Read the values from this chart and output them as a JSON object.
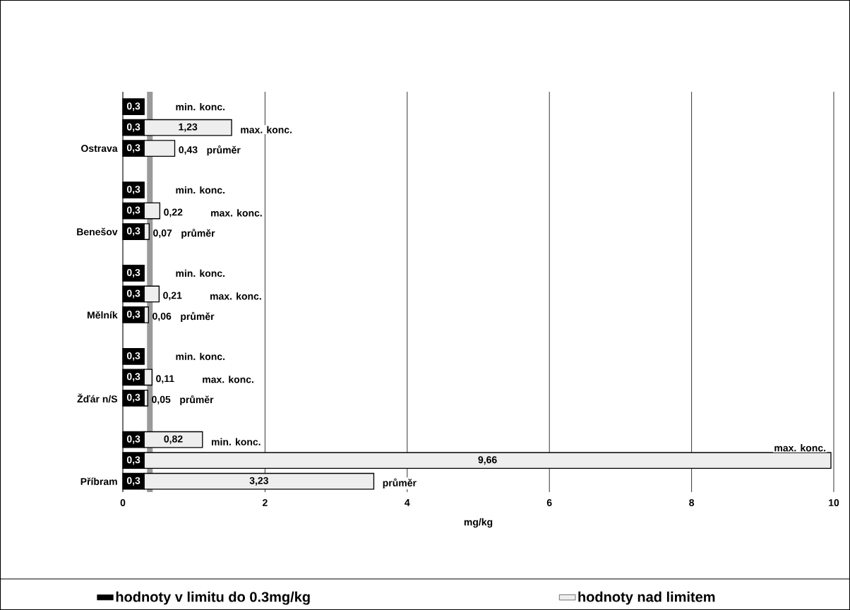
{
  "chart_data": {
    "type": "bar",
    "orientation": "horizontal",
    "stacked": true,
    "categories": [
      null,
      null,
      "Ostrava",
      null,
      null,
      "Benešov",
      null,
      null,
      "Mělník",
      null,
      null,
      "Žďár n/S",
      null,
      null,
      "Příbram"
    ],
    "series": [
      {
        "name": "hodnoty v limitu do 0.3mg/kg",
        "color": "#000000",
        "values": [
          0.3,
          0.3,
          0.3,
          0.3,
          0.3,
          0.3,
          0.3,
          0.3,
          0.3,
          0.3,
          0.3,
          0.3,
          0.3,
          0.3,
          0.3
        ],
        "value_labels": [
          "0,3",
          "0,3",
          "0,3",
          "0,3",
          "0,3",
          "0,3",
          "0,3",
          "0,3",
          "0,3",
          "0,3",
          "0,3",
          "0,3",
          "0,3",
          "0,3",
          "0,3"
        ]
      },
      {
        "name": "hodnoty nad limitem",
        "color": "#eeeeee",
        "values": [
          null,
          1.23,
          0.43,
          null,
          0.22,
          0.07,
          null,
          0.21,
          0.06,
          null,
          0.11,
          0.05,
          0.82,
          9.66,
          3.23
        ],
        "value_labels": [
          null,
          "1,23",
          "0,43",
          null,
          "0,22",
          "0,07",
          null,
          "0,21",
          "0,06",
          null,
          "0,11",
          "0,05",
          "0,82",
          "9,66",
          "3,23"
        ]
      }
    ],
    "xlabel": "mg/kg",
    "xlim": [
      0,
      10
    ],
    "xticks": [
      0,
      2,
      4,
      6,
      8,
      10
    ],
    "grid": "x",
    "legend": "bottom",
    "bands": [
      {
        "axis": "x",
        "from": 0.34,
        "to": 0.42,
        "color": "#9a9a9a"
      }
    ],
    "annotations": [
      "min. konc.",
      "max. konc.",
      "průměr",
      "min. konc.",
      "max. konc.",
      "průměr",
      "min. konc.",
      "max. konc.",
      "průměr",
      "min. konc.",
      "max. konc.",
      "průměr",
      "min. konc.",
      "max. konc.",
      "průměr"
    ]
  }
}
